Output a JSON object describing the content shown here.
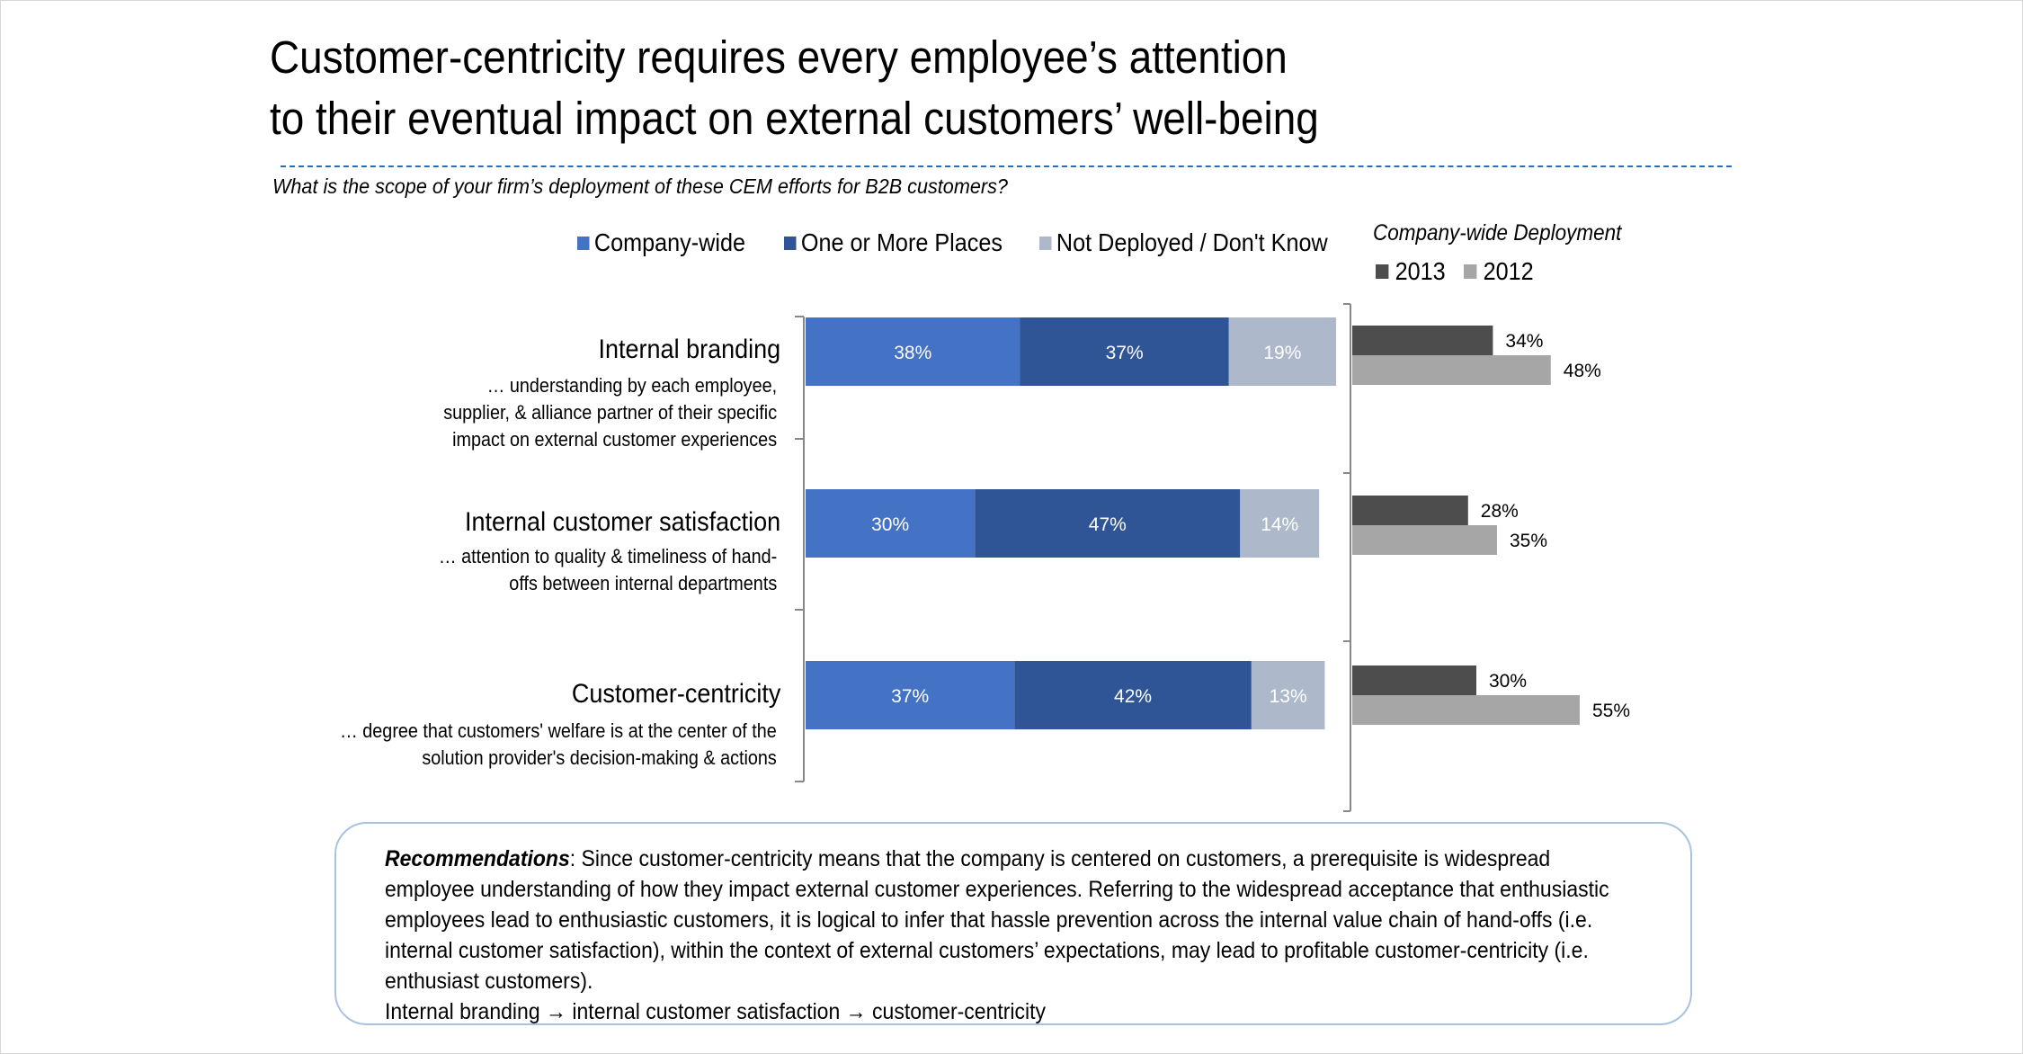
{
  "title_line1": "Customer-centricity requires every employee’s attention",
  "title_line2": "to their eventual impact on external customers’ well-being",
  "question": "What is the scope of your firm’s deployment of these CEM efforts for B2B customers?",
  "legend": [
    {
      "label": "Company-wide",
      "color": "#4472c4"
    },
    {
      "label": "One or More Places",
      "color": "#2f5597"
    },
    {
      "label": "Not Deployed / Don't Know",
      "color": "#adb9ca"
    }
  ],
  "right_title": "Company-wide Deployment",
  "right_legend": [
    {
      "label": "2013",
      "color": "#4d4d4d"
    },
    {
      "label": "2012",
      "color": "#a6a6a6"
    }
  ],
  "categories": [
    {
      "title": "Internal branding",
      "desc": [
        "… understanding by each employee,",
        "supplier, & alliance partner of their specific",
        "impact on external customer experiences"
      ]
    },
    {
      "title": "Internal customer satisfaction",
      "desc": [
        "… attention to quality & timeliness of hand-",
        "offs between internal departments"
      ]
    },
    {
      "title": "Customer-centricity",
      "desc": [
        "… degree that customers' welfare is at the center of the",
        "solution provider's decision-making & actions"
      ]
    }
  ],
  "chart_data": [
    {
      "type": "bar",
      "orientation": "horizontal",
      "stacked": true,
      "categories": [
        "Internal branding",
        "Internal customer satisfaction",
        "Customer-centricity"
      ],
      "series": [
        {
          "name": "Company-wide",
          "values": [
            38,
            30,
            37
          ],
          "labels": [
            "38%",
            "30%",
            "37%"
          ]
        },
        {
          "name": "One or More Places",
          "values": [
            37,
            47,
            42
          ],
          "labels": [
            "37%",
            "47%",
            "42%"
          ]
        },
        {
          "name": "Not Deployed / Don't Know",
          "values": [
            19,
            14,
            13
          ],
          "labels": [
            "19%",
            "14%",
            "13%"
          ]
        }
      ],
      "xlim": [
        0,
        94
      ],
      "legend": "top"
    },
    {
      "type": "bar",
      "orientation": "horizontal",
      "title": "Company-wide Deployment",
      "categories": [
        "Internal branding",
        "Internal customer satisfaction",
        "Customer-centricity"
      ],
      "series": [
        {
          "name": "2013",
          "values": [
            34,
            28,
            30
          ],
          "labels": [
            "34%",
            "28%",
            "30%"
          ]
        },
        {
          "name": "2012",
          "values": [
            48,
            35,
            55
          ],
          "labels": [
            "48%",
            "35%",
            "55%"
          ]
        }
      ],
      "xlim": [
        0,
        100
      ],
      "legend": "top"
    }
  ],
  "recommendation": {
    "label": "Recommendations",
    "text": ": Since customer-centricity means that the company is centered on customers, a prerequisite is widespread employee understanding of how they impact external customer experiences. Referring to the widespread acceptance that enthusiastic employees lead to enthusiastic customers, it is logical to infer that hassle prevention across the internal value chain of hand-offs (i.e. internal customer satisfaction), within the context of external customers’ expectations, may lead to profitable customer-centricity (i.e. enthusiast customers).",
    "flow": "Internal branding → internal customer satisfaction → customer-centricity"
  }
}
